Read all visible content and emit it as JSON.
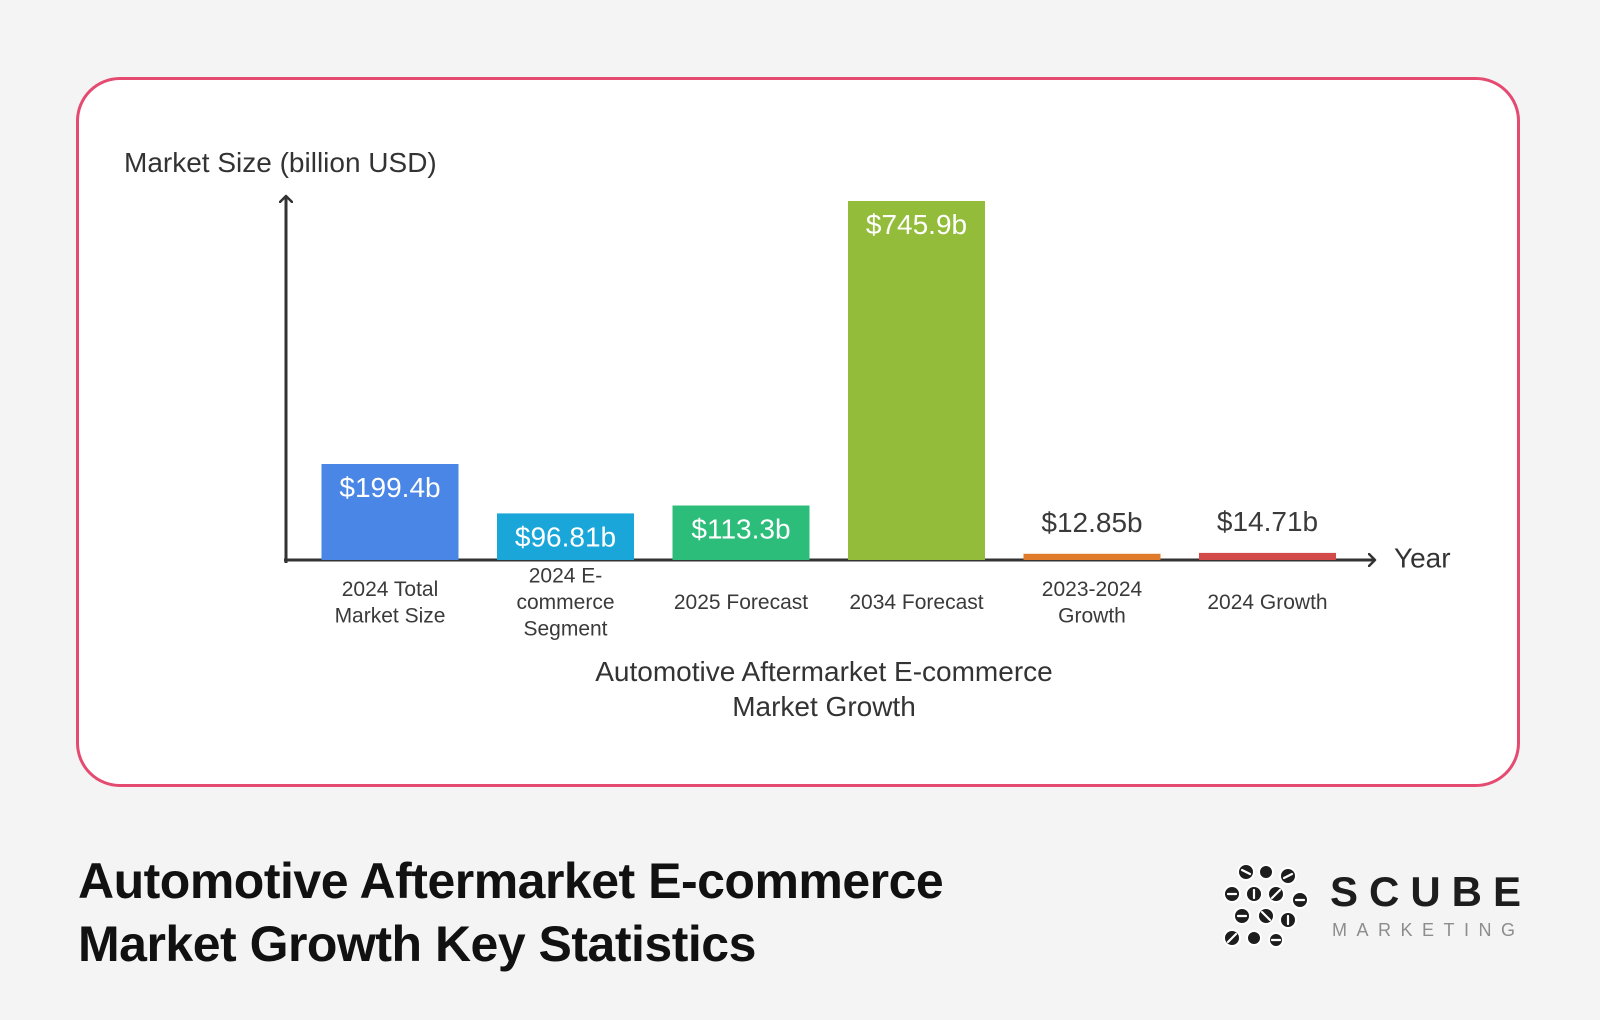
{
  "chart_data": {
    "type": "bar",
    "title": "Automotive Aftermarket E-commerce Market Growth",
    "ylabel": "Market Size (billion USD)",
    "xlabel": "Year",
    "ylim": [
      0,
      745.9
    ],
    "categories": [
      [
        "2024 Total",
        "Market Size"
      ],
      [
        "2024 E-",
        "commerce",
        "Segment"
      ],
      [
        "2025 Forecast"
      ],
      [
        "2034 Forecast"
      ],
      [
        "2023-2024",
        "Growth"
      ],
      [
        "2024 Growth"
      ]
    ],
    "values": [
      199.4,
      96.81,
      113.3,
      745.9,
      12.85,
      14.71
    ],
    "labels": [
      "$199.4b",
      "$96.81b",
      "$113.3b",
      "$745.9b",
      "$12.85b",
      "$14.71b"
    ],
    "colors": [
      "#4a86e6",
      "#1aa6d9",
      "#2cbd7a",
      "#92bc3a",
      "#e07b2c",
      "#d24a4a"
    ],
    "label_inside": [
      true,
      true,
      true,
      true,
      false,
      false
    ]
  },
  "footer": {
    "title_line1": "Automotive Aftermarket E-commerce",
    "title_line2": "Market Growth Key Statistics"
  },
  "brand": {
    "name": "SCUBE",
    "tagline": "MARKETING"
  },
  "colors": {
    "card_border": "#e54a70",
    "axis": "#333333"
  }
}
